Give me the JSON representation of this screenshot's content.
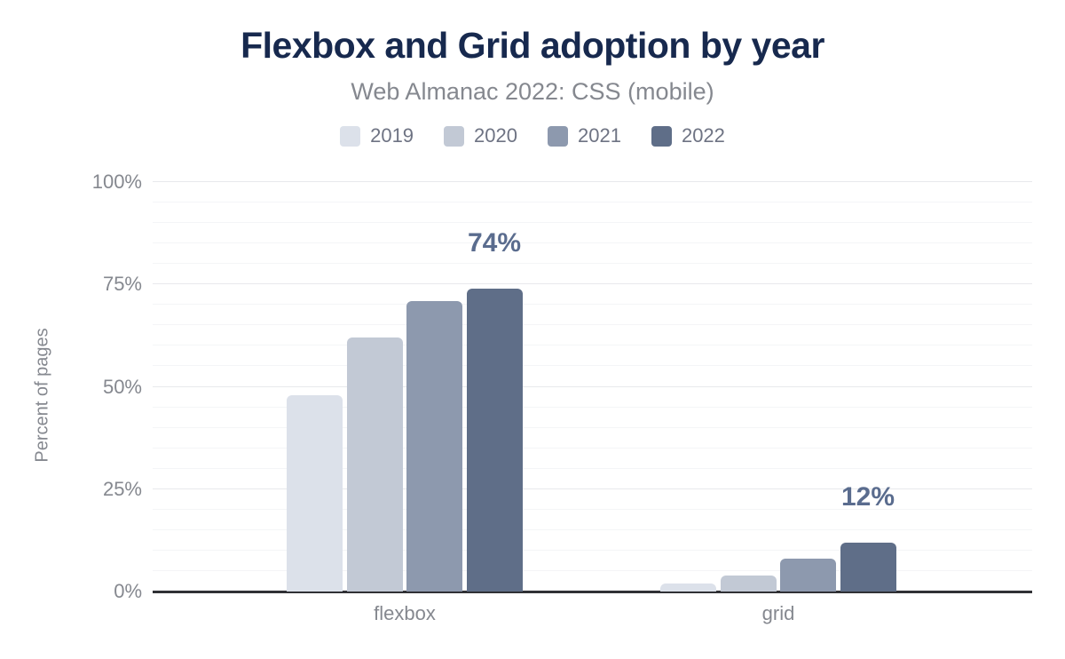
{
  "chart_data": {
    "type": "bar",
    "title": "Flexbox and Grid adoption by year",
    "subtitle": "Web Almanac 2022: CSS (mobile)",
    "ylabel": "Percent of pages",
    "xlabel": "",
    "categories": [
      "flexbox",
      "grid"
    ],
    "series": [
      {
        "name": "2019",
        "color": "#dce1ea",
        "values": [
          48,
          2
        ]
      },
      {
        "name": "2020",
        "color": "#c2c9d5",
        "values": [
          62,
          4
        ]
      },
      {
        "name": "2021",
        "color": "#8d99ae",
        "values": [
          71,
          8
        ]
      },
      {
        "name": "2022",
        "color": "#5f6e88",
        "values": [
          74,
          12
        ]
      }
    ],
    "annotations": [
      {
        "text": "74%",
        "category_index": 0,
        "series_index": 3
      },
      {
        "text": "12%",
        "category_index": 1,
        "series_index": 3
      }
    ],
    "y_ticks": [
      {
        "label": "0%",
        "value": 0
      },
      {
        "label": "25%",
        "value": 25
      },
      {
        "label": "50%",
        "value": 50
      },
      {
        "label": "75%",
        "value": 75
      },
      {
        "label": "100%",
        "value": 100
      }
    ],
    "ylim": [
      0,
      100
    ],
    "grid_minor_step": 5,
    "grid_major_step": 25,
    "grid_on": true,
    "legend_position": "top"
  },
  "colors": {
    "title": "#17294e",
    "subtitle": "#85888f",
    "axis_text": "#85888f",
    "legend_text": "#6e7383",
    "data_label": "#5a6c8e",
    "axis_line": "#303135",
    "gridline_major": "#e8e9ec",
    "gridline_minor": "#f4f5f7",
    "background": "#ffffff"
  }
}
